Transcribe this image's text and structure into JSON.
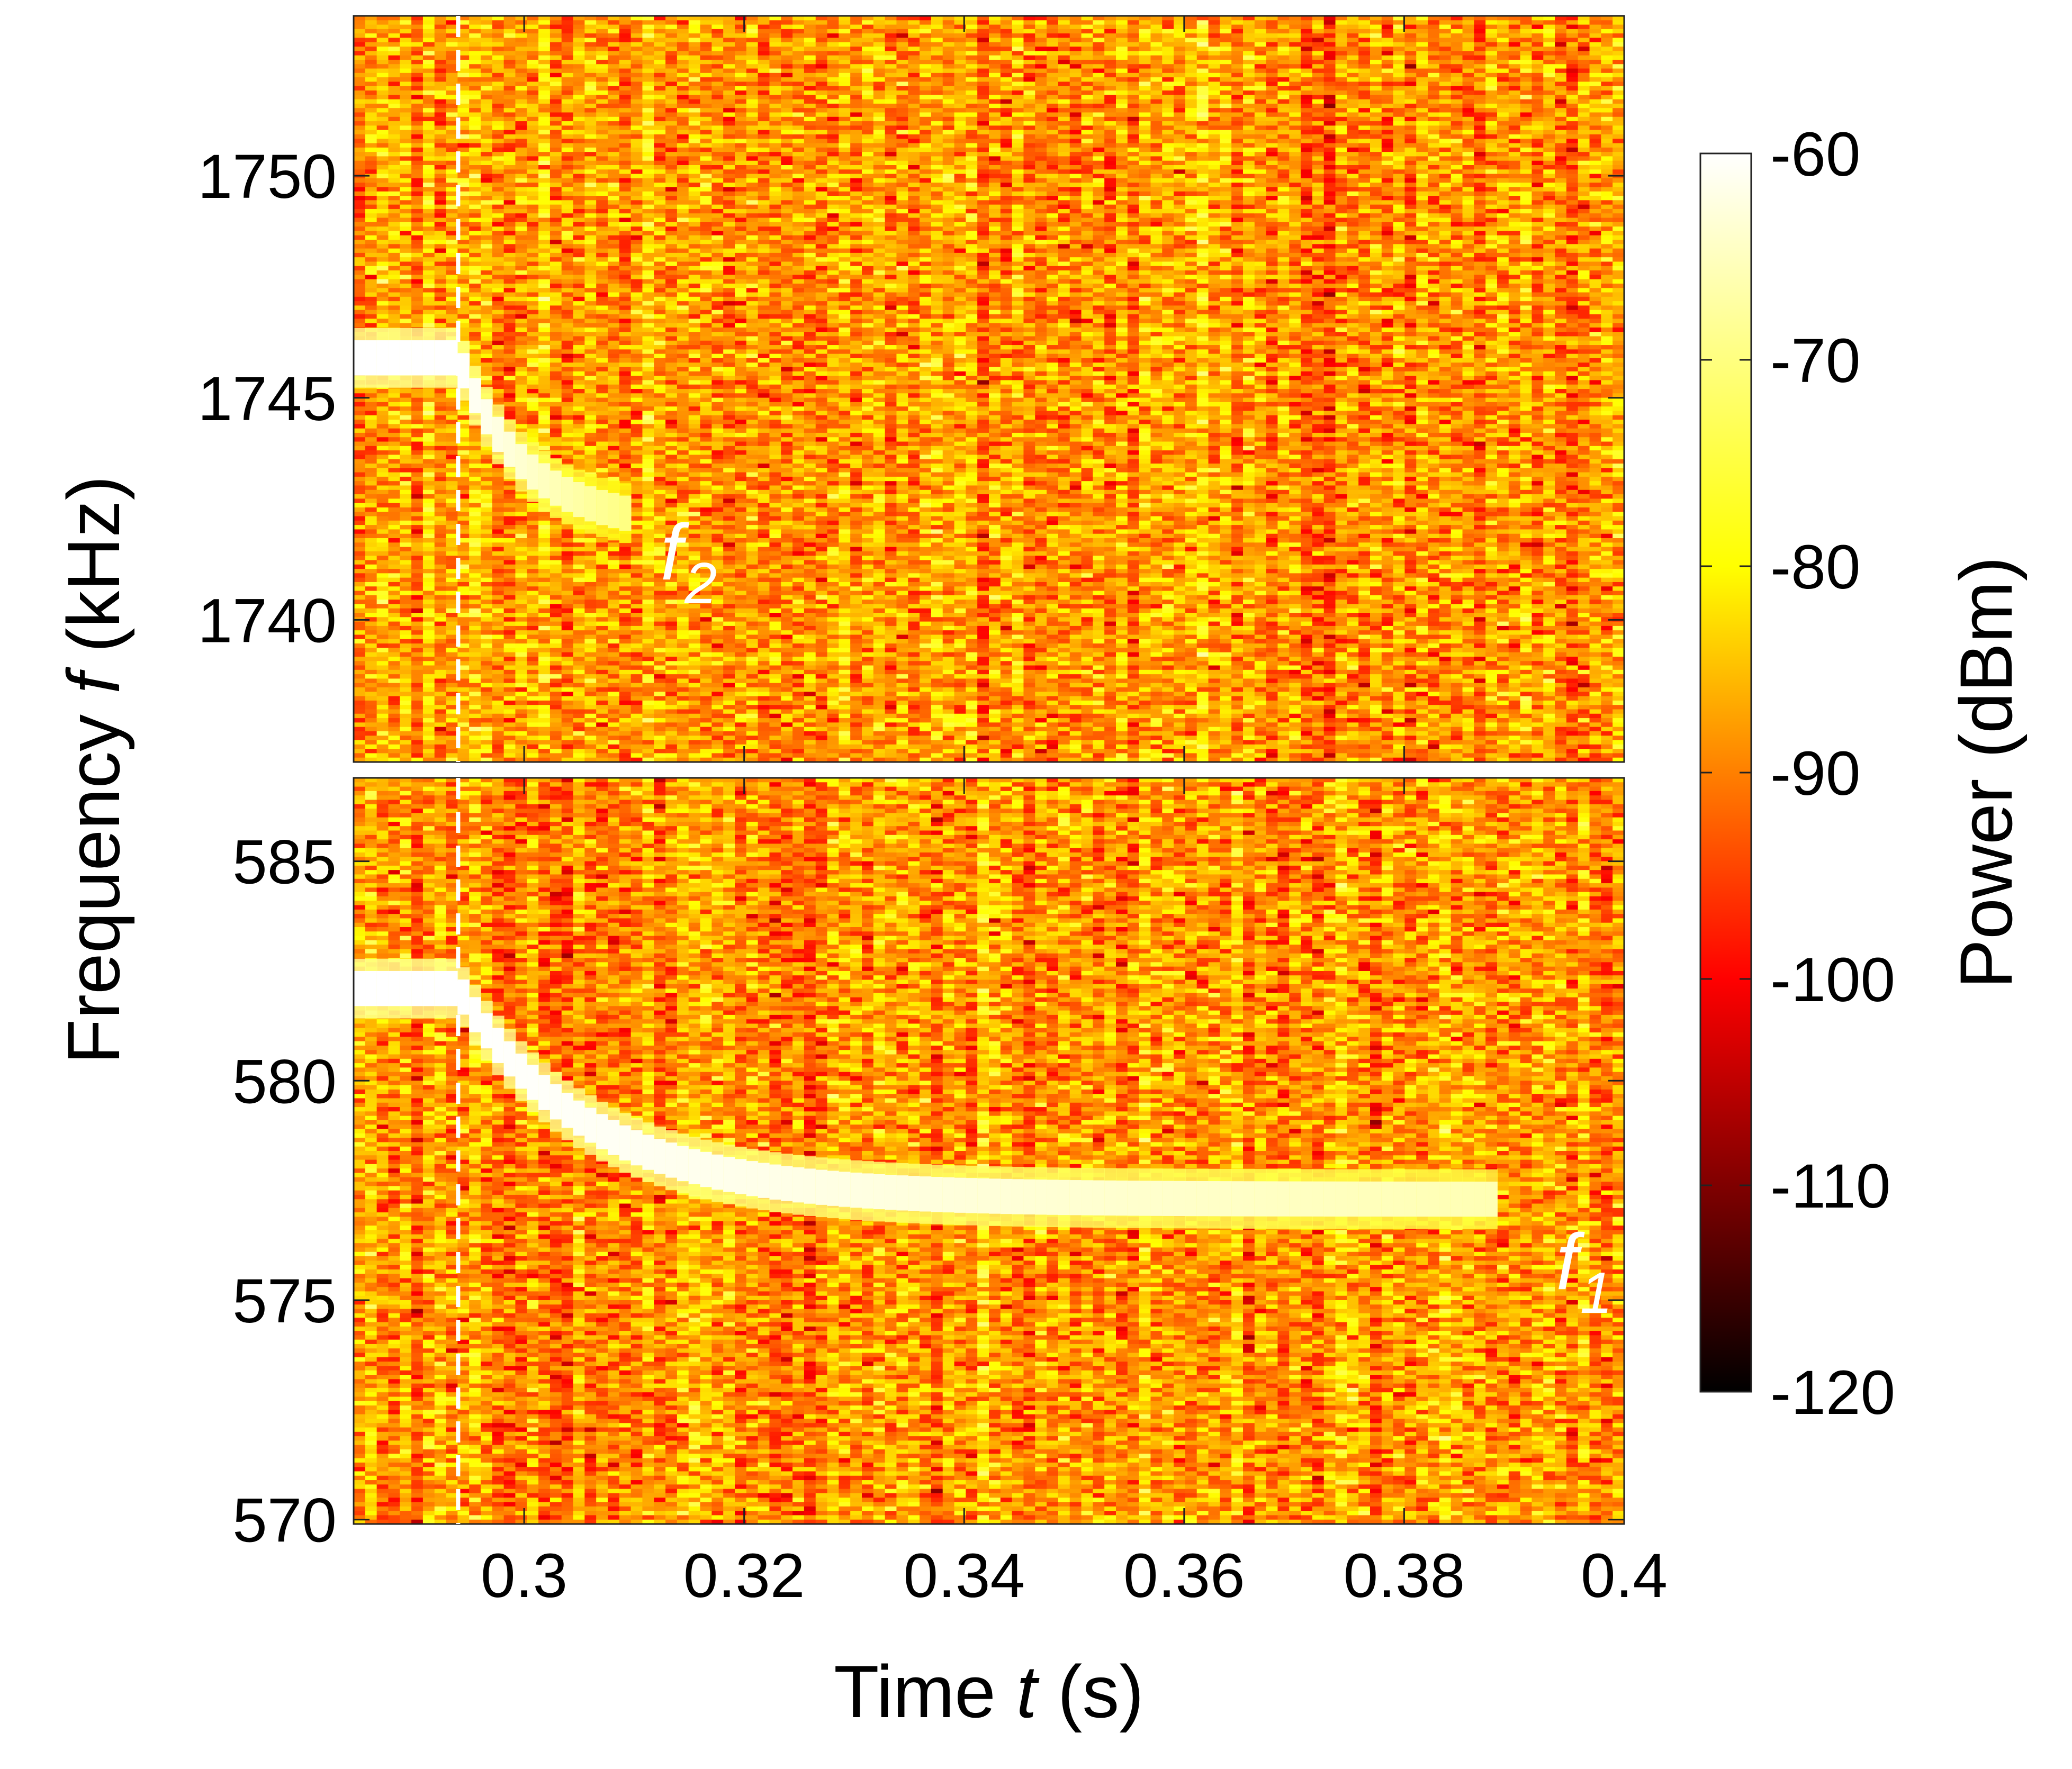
{
  "chart_data": {
    "type": "heatmap",
    "xlabel_prefix": "Time ",
    "xlabel_var": "t",
    "xlabel_unit": " (s)",
    "ylabel_prefix": "Frequency ",
    "ylabel_var": "f",
    "ylabel_unit": " (kHz)",
    "xlim": [
      0.2845,
      0.4
    ],
    "x_ticks": [
      0.3,
      0.32,
      0.34,
      0.36,
      0.38,
      0.4
    ],
    "x_tick_labels": [
      "0.3",
      "0.32",
      "0.34",
      "0.36",
      "0.38",
      "0.4"
    ],
    "marker_line_time": 0.294,
    "panels": [
      {
        "id": "top",
        "ylim": [
          1736.8,
          1753.6
        ],
        "y_ticks": [
          1740,
          1745,
          1750
        ],
        "y_tick_labels": [
          "1740",
          "1745",
          "1750"
        ],
        "trace_label": "f",
        "trace_label_sub": "2",
        "trace": {
          "f_before": 1745.9,
          "t_drop": 0.294,
          "f_after": 1742.1,
          "tau": 0.006,
          "t_end": 0.3095,
          "power_dbm_before": -60,
          "power_dbm_after": -70
        }
      },
      {
        "id": "bottom",
        "ylim": [
          569.9,
          586.9
        ],
        "y_ticks": [
          570,
          575,
          580,
          585
        ],
        "y_tick_labels": [
          "570",
          "575",
          "580",
          "585"
        ],
        "trace_label": "f",
        "trace_label_sub": "1",
        "trace": {
          "f_before": 582.1,
          "t_drop": 0.294,
          "f_after": 577.3,
          "tau": 0.0115,
          "t_end": 0.3885,
          "power_dbm_before": -60,
          "power_dbm_after": -66
        }
      }
    ],
    "background_power_dbm": -88,
    "colorbar": {
      "label": "Power (dBm)",
      "range": [
        -120,
        -60
      ],
      "ticks": [
        -60,
        -70,
        -80,
        -90,
        -100,
        -110,
        -120
      ],
      "tick_labels": [
        "-60",
        "-70",
        "-80",
        "-90",
        "-100",
        "-110",
        "-120"
      ],
      "colormap": "hot",
      "colors": [
        "#000000",
        "#ff0000",
        "#ffff00",
        "#ffffff"
      ]
    },
    "marker_line_color": "#ffffff"
  }
}
